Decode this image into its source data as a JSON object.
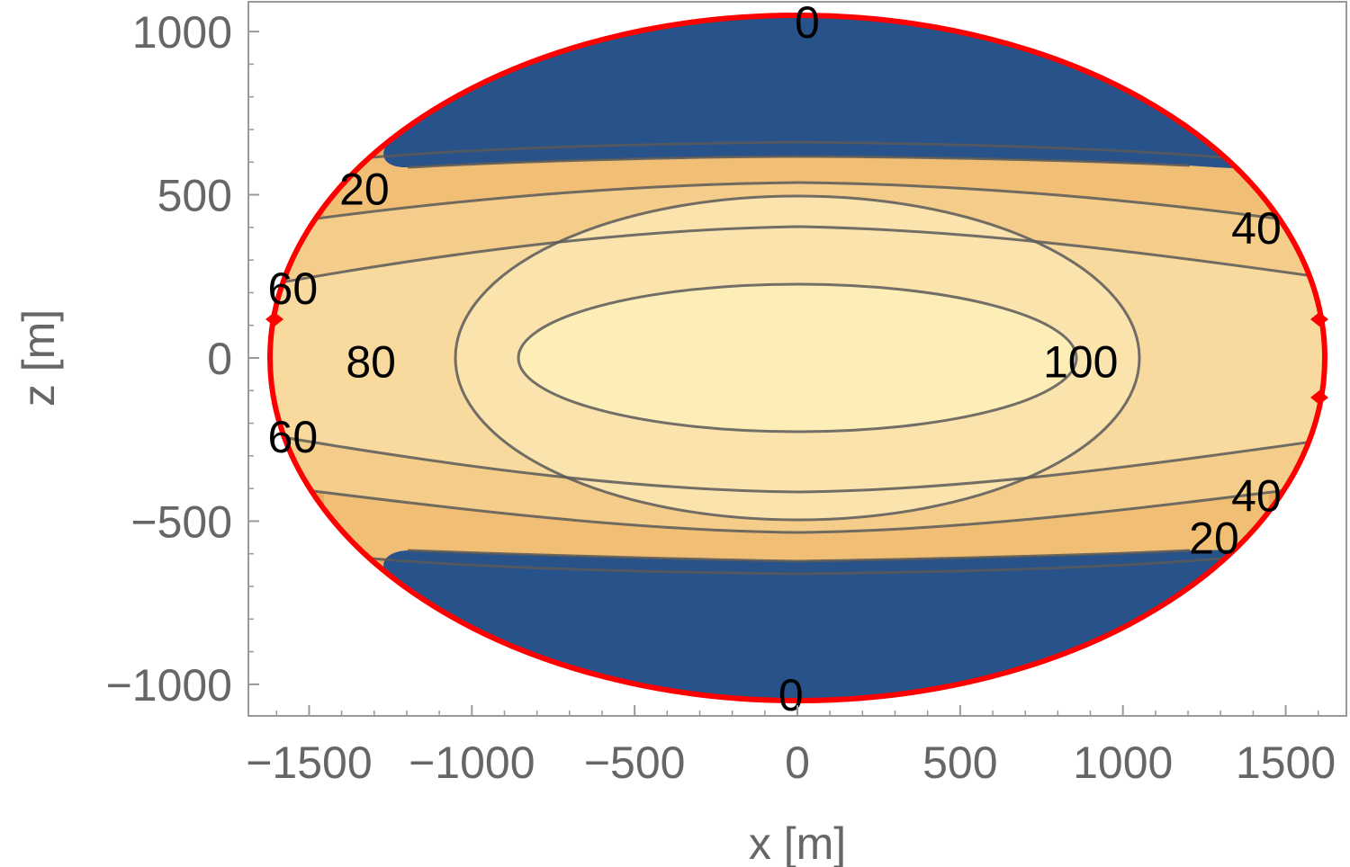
{
  "chart_data": {
    "type": "contour",
    "xlabel": "x [m]",
    "ylabel": "z [m]",
    "xlim": [
      -1660,
      1700
    ],
    "ylim": [
      -1100,
      1090
    ],
    "x_ticks": [
      -1500,
      -1000,
      -500,
      0,
      500,
      1000,
      1500
    ],
    "x_tick_labels": [
      "−1500",
      "−1000",
      "−500",
      "0",
      "500",
      "1000",
      "1500"
    ],
    "y_ticks": [
      -1000,
      -500,
      0,
      500,
      1000
    ],
    "y_tick_labels": [
      "−1000",
      "−500",
      "0",
      "500",
      "1000"
    ],
    "boundary": {
      "shape": "ellipse",
      "x_semi_axis": 1620,
      "z_semi_axis": 1050,
      "color": "#ff0000"
    },
    "fill_colors": {
      "zero_region": "#27528a",
      "low": "#e9ad5e",
      "mid_low": "#f0bf75",
      "mid": "#f5cd8a",
      "mid_high": "#f8d99e",
      "high": "#fbe3ae",
      "top": "#fdeeb8"
    },
    "contours": [
      {
        "level": 0,
        "label": "0"
      },
      {
        "level": 20,
        "label": "20"
      },
      {
        "level": 40,
        "label": "40"
      },
      {
        "level": 60,
        "label": "60"
      },
      {
        "level": 80,
        "label": "80"
      },
      {
        "level": 100,
        "label": "100"
      }
    ],
    "contour_labels": [
      {
        "text": "0",
        "x": 30,
        "z": 1030
      },
      {
        "text": "0",
        "x": -20,
        "z": -1030
      },
      {
        "text": "20",
        "x": -1330,
        "z": 520
      },
      {
        "text": "20",
        "x": 1280,
        "z": -550
      },
      {
        "text": "40",
        "x": 1410,
        "z": 400
      },
      {
        "text": "40",
        "x": 1410,
        "z": -420
      },
      {
        "text": "60",
        "x": -1550,
        "z": 215
      },
      {
        "text": "60",
        "x": -1550,
        "z": -240
      },
      {
        "text": "80",
        "x": -1310,
        "z": -10
      },
      {
        "text": "100",
        "x": 870,
        "z": -10
      }
    ]
  }
}
